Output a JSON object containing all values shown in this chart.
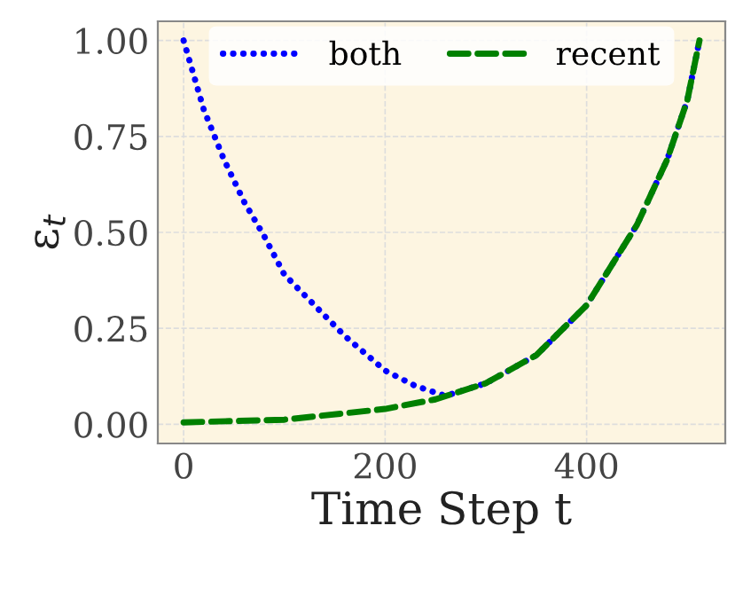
{
  "chart_data": {
    "type": "line",
    "xlabel": "Time Step t",
    "ylabel": "ε$_{t}$",
    "xlim": [
      -25.6,
      537.6
    ],
    "ylim": [
      -0.05,
      1.05
    ],
    "xticks": [
      0,
      200,
      400
    ],
    "yticks": [
      {
        "value": 0,
        "label": "0.00"
      },
      {
        "value": 0.25,
        "label": "0.25"
      },
      {
        "value": 0.5,
        "label": "0.50"
      },
      {
        "value": 0.75,
        "label": "0.75"
      },
      {
        "value": 1,
        "label": "1.00"
      }
    ],
    "grid": true,
    "legend": "top",
    "marker": "none",
    "series": [
      {
        "name": "both",
        "color": "#0000ff",
        "line_style": "dotted",
        "x": [
          0,
          20,
          40,
          60,
          80,
          100,
          130,
          160,
          200,
          230,
          260,
          300,
          350,
          400,
          450,
          480,
          500,
          512
        ],
        "values": [
          1.0,
          0.82,
          0.69,
          0.58,
          0.49,
          0.39,
          0.31,
          0.23,
          0.14,
          0.1,
          0.074,
          0.107,
          0.18,
          0.31,
          0.52,
          0.69,
          0.845,
          1.0
        ]
      },
      {
        "name": "recent",
        "color": "#008000",
        "line_style": "dashed",
        "x": [
          0,
          100,
          200,
          250,
          300,
          350,
          400,
          450,
          480,
          500,
          512
        ],
        "values": [
          0.005,
          0.012,
          0.04,
          0.065,
          0.107,
          0.18,
          0.31,
          0.52,
          0.69,
          0.845,
          1.0
        ]
      }
    ]
  }
}
